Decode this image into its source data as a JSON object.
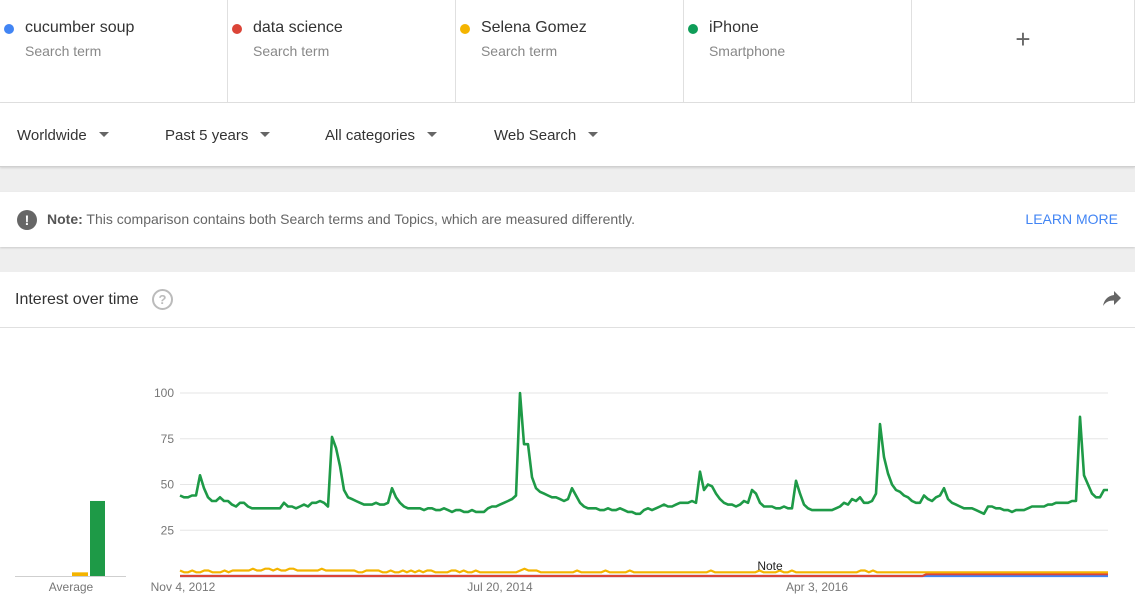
{
  "terms": [
    {
      "name": "cucumber soup",
      "kind": "Search term",
      "color": "#4285f4"
    },
    {
      "name": "data science",
      "kind": "Search term",
      "color": "#db4437"
    },
    {
      "name": "Selena Gomez",
      "kind": "Search term",
      "color": "#f4b400"
    },
    {
      "name": "iPhone",
      "kind": "Smartphone",
      "color": "#0f9d58"
    }
  ],
  "add_term": {
    "label": "+"
  },
  "filters": {
    "region": "Worldwide",
    "period": "Past 5 years",
    "category": "All categories",
    "search_type": "Web Search"
  },
  "note": {
    "label": "Note:",
    "text": "This comparison contains both Search terms and Topics, which are measured differently.",
    "link": "LEARN MORE"
  },
  "interest": {
    "title": "Interest over time",
    "help_icon": "question-circle-icon",
    "share_icon": "share-arrow-icon"
  },
  "chart_data": {
    "type": "line",
    "ylim": [
      0,
      100
    ],
    "yticks": [
      "100",
      "75",
      "50",
      "25"
    ],
    "xtick_labels": [
      "Nov 4, 2012",
      "Jul 20, 2014",
      "Apr 3, 2016"
    ],
    "annotation": "Note",
    "average": {
      "label": "Average",
      "values": [
        {
          "name": "cucumber soup",
          "value": 0
        },
        {
          "name": "data science",
          "value": 0
        },
        {
          "name": "Selena Gomez",
          "value": 2
        },
        {
          "name": "iPhone",
          "value": 41
        }
      ]
    },
    "series": [
      {
        "name": "iPhone",
        "color": "#1e9a47",
        "values": [
          44,
          43,
          43,
          44,
          44,
          55,
          48,
          43,
          41,
          41,
          43,
          41,
          41,
          39,
          38,
          40,
          40,
          38,
          37,
          37,
          37,
          37,
          37,
          37,
          37,
          37,
          40,
          38,
          38,
          37,
          38,
          39,
          38,
          40,
          40,
          41,
          40,
          38,
          76,
          70,
          60,
          47,
          43,
          42,
          41,
          40,
          39,
          39,
          39,
          40,
          39,
          39,
          40,
          48,
          43,
          40,
          38,
          37,
          37,
          37,
          37,
          36,
          37,
          37,
          36,
          36,
          37,
          36,
          35,
          36,
          36,
          35,
          35,
          36,
          35,
          35,
          35,
          37,
          38,
          38,
          39,
          40,
          41,
          42,
          44,
          100,
          72,
          72,
          54,
          48,
          46,
          45,
          44,
          43,
          43,
          42,
          41,
          42,
          48,
          44,
          40,
          38,
          37,
          37,
          37,
          36,
          36,
          37,
          36,
          36,
          37,
          36,
          35,
          35,
          34,
          34,
          36,
          37,
          36,
          37,
          38,
          39,
          38,
          38,
          39,
          40,
          40,
          40,
          41,
          40,
          57,
          47,
          50,
          49,
          45,
          42,
          40,
          39,
          39,
          38,
          39,
          41,
          40,
          47,
          45,
          40,
          38,
          38,
          38,
          37,
          37,
          38,
          37,
          37,
          52,
          45,
          39,
          37,
          36,
          36,
          36,
          36,
          36,
          36,
          37,
          38,
          40,
          39,
          42,
          41,
          43,
          40,
          40,
          41,
          45,
          83,
          65,
          56,
          50,
          47,
          46,
          44,
          43,
          41,
          40,
          40,
          44,
          42,
          41,
          43,
          44,
          48,
          42,
          40,
          39,
          38,
          37,
          37,
          37,
          36,
          35,
          34,
          38,
          38,
          37,
          37,
          36,
          36,
          35,
          36,
          36,
          36,
          37,
          38,
          38,
          38,
          38,
          39,
          39,
          40,
          40,
          40,
          40,
          41,
          41,
          87,
          55,
          50,
          45,
          43,
          43,
          47,
          47
        ]
      },
      {
        "name": "Selena Gomez",
        "color": "#f4b400",
        "values": [
          3,
          2,
          2,
          3,
          2,
          2,
          3,
          3,
          2,
          2,
          2,
          3,
          2,
          3,
          3,
          3,
          3,
          3,
          4,
          3,
          3,
          4,
          4,
          3,
          4,
          3,
          3,
          4,
          4,
          3,
          3,
          3,
          3,
          3,
          3,
          4,
          3,
          3,
          3,
          3,
          3,
          3,
          3,
          3,
          2,
          2,
          3,
          3,
          3,
          3,
          2,
          2,
          3,
          2,
          2,
          3,
          2,
          3,
          2,
          3,
          2,
          3,
          3,
          2,
          2,
          2,
          2,
          3,
          3,
          2,
          3,
          2,
          2,
          3,
          2,
          2,
          2,
          2,
          2,
          2,
          2,
          2,
          2,
          2,
          3,
          4,
          3,
          3,
          3,
          2,
          2,
          2,
          2,
          2,
          2,
          2,
          2,
          2,
          3,
          2,
          2,
          2,
          2,
          2,
          2,
          3,
          2,
          2,
          2,
          2,
          2,
          3,
          2,
          2,
          2,
          2,
          2,
          2,
          2,
          2,
          2,
          2,
          2,
          2,
          2,
          2,
          2,
          2,
          2,
          2,
          2,
          3,
          2,
          2,
          2,
          2,
          2,
          2,
          2,
          2,
          2,
          2,
          2,
          3,
          2,
          2,
          2,
          2,
          3,
          2,
          2,
          3,
          2,
          2,
          2,
          2,
          2,
          2,
          2,
          2,
          2,
          2,
          2,
          2,
          2,
          2,
          2,
          2,
          3,
          3,
          2,
          3,
          2,
          2,
          2,
          2,
          2,
          2,
          2,
          2,
          2,
          2,
          2,
          2,
          2,
          2,
          2,
          2,
          2,
          2,
          2,
          2,
          2,
          2,
          2,
          2,
          2,
          2,
          2,
          2,
          2,
          2,
          2,
          2,
          2,
          2,
          2,
          2,
          2,
          2,
          2,
          2,
          2,
          2,
          2,
          2,
          2,
          2,
          2,
          2,
          2,
          2,
          2,
          2,
          2,
          2,
          2,
          2,
          2,
          2
        ]
      },
      {
        "name": "data science",
        "color": "#db4437",
        "values": [
          0,
          0,
          0,
          0,
          0,
          0,
          0,
          0,
          0,
          0,
          0,
          0,
          0,
          0,
          0,
          0,
          0,
          0,
          0,
          0,
          0,
          0,
          0,
          0,
          0,
          0,
          0,
          0,
          0,
          0,
          0,
          0,
          0,
          0,
          0,
          0,
          0,
          0,
          0,
          0,
          0,
          0,
          0,
          0,
          0,
          0,
          0,
          0,
          0,
          0,
          0,
          0,
          0,
          0,
          0,
          0,
          0,
          0,
          0,
          0,
          0,
          0,
          0,
          0,
          0,
          0,
          0,
          0,
          0,
          0,
          0,
          0,
          0,
          0,
          0,
          0,
          0,
          0,
          0,
          0,
          0,
          0,
          0,
          0,
          0,
          0,
          0,
          0,
          0,
          0,
          0,
          0,
          0,
          0,
          0,
          0,
          0,
          0,
          0,
          0,
          0,
          0,
          0,
          0,
          0,
          0,
          0,
          0,
          0,
          0,
          0,
          0,
          0,
          0,
          0,
          0,
          0,
          0,
          0,
          0,
          0,
          0,
          0,
          0,
          0,
          0,
          0,
          0,
          0,
          0,
          0,
          0,
          0,
          0,
          0,
          0,
          0,
          0,
          0,
          0,
          0,
          0,
          0,
          0,
          0,
          0,
          0,
          0,
          0,
          0,
          0,
          0,
          0,
          0,
          0,
          0,
          0,
          0,
          0,
          0,
          0,
          0,
          0,
          0,
          0,
          0,
          0,
          0,
          0,
          0,
          0,
          0,
          0,
          0,
          0,
          0,
          0,
          0,
          0,
          0,
          0,
          0,
          0,
          0,
          0,
          1,
          1,
          1,
          1,
          1,
          1,
          1,
          1,
          1,
          1,
          1,
          1,
          1,
          1,
          1,
          1,
          1,
          1,
          1,
          1,
          1,
          1,
          1,
          1,
          1,
          1,
          1,
          1,
          1,
          1,
          1,
          1,
          1,
          1,
          1,
          1,
          1,
          1,
          1,
          1,
          1,
          1,
          1,
          1,
          1,
          1
        ]
      },
      {
        "name": "cucumber soup",
        "color": "#4285f4",
        "values": [
          0,
          0,
          0,
          0,
          0,
          0,
          0,
          0,
          0,
          0,
          0,
          0,
          0,
          0,
          0,
          0,
          0,
          0,
          0,
          0,
          0,
          0,
          0,
          0,
          0,
          0,
          0,
          0,
          0,
          0,
          0,
          0,
          0,
          0,
          0,
          0,
          0,
          0,
          0,
          0,
          0,
          0,
          0,
          0,
          0,
          0,
          0,
          0,
          0,
          0,
          0,
          0,
          0,
          0,
          0,
          0,
          0,
          0,
          0,
          0,
          0,
          0,
          0,
          0,
          0,
          0,
          0,
          0,
          0,
          0,
          0,
          0,
          0,
          0,
          0,
          0,
          0,
          0,
          0,
          0,
          0,
          0,
          0,
          0,
          0,
          0,
          0,
          0,
          0,
          0,
          0,
          0,
          0,
          0,
          0,
          0,
          0,
          0,
          0,
          0,
          0,
          0,
          0,
          0,
          0,
          0,
          0,
          0,
          0,
          0,
          0,
          0,
          0,
          0,
          0,
          0,
          0,
          0,
          0,
          0,
          0,
          0,
          0,
          0,
          0,
          0,
          0,
          0,
          0,
          0,
          0,
          0,
          0,
          0,
          0,
          0,
          0,
          0,
          0,
          0,
          0,
          0,
          0,
          0,
          0,
          0,
          0,
          0,
          0,
          0,
          0,
          0,
          0,
          0,
          0,
          0,
          0,
          0,
          0,
          0,
          0,
          0,
          0,
          0,
          0,
          0,
          0,
          0,
          0,
          0,
          0,
          0,
          0,
          0,
          0,
          0,
          0,
          0,
          0,
          0,
          0,
          0,
          0,
          0,
          0,
          0,
          0,
          0,
          0,
          0,
          0,
          0,
          0,
          0,
          0,
          0,
          0,
          0,
          0,
          0,
          0,
          0,
          0,
          0,
          0,
          0,
          0,
          0,
          0,
          0,
          0,
          0,
          0,
          0,
          0,
          0,
          0,
          0,
          0,
          0,
          0,
          0,
          0,
          0,
          0,
          0,
          0,
          0,
          0,
          0
        ]
      }
    ]
  }
}
